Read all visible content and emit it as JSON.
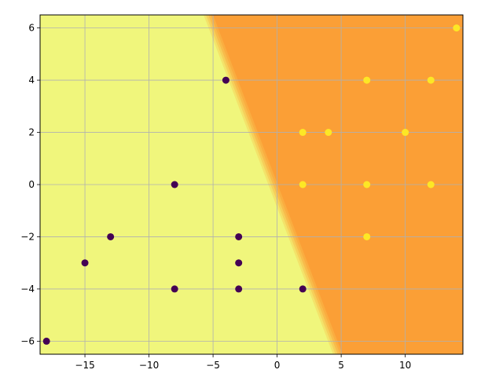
{
  "chart_data": {
    "type": "scatter",
    "title": "",
    "xlabel": "",
    "ylabel": "",
    "xlim": [
      -18.5,
      14.5
    ],
    "ylim": [
      -6.5,
      6.5
    ],
    "grid": true,
    "x_ticks": [
      -15,
      -10,
      -5,
      0,
      5,
      10
    ],
    "y_ticks": [
      -6,
      -4,
      -2,
      0,
      2,
      4,
      6
    ],
    "decision_regions": {
      "boundary_line": [
        [
          -5,
          6.5
        ],
        [
          5.1,
          -6.5
        ]
      ],
      "left_color": "#f0f67c",
      "right_color": "#fb9f36",
      "transition_colors": [
        "#f3e36a",
        "#f6cf5a",
        "#f8bb4b",
        "#faad40"
      ]
    },
    "series": [
      {
        "color": "#440154",
        "points": [
          [
            -18,
            -6
          ],
          [
            -15,
            -3
          ],
          [
            -13,
            -2
          ],
          [
            -8,
            0
          ],
          [
            -8,
            -4
          ],
          [
            -4,
            4
          ],
          [
            -3,
            -2
          ],
          [
            -3,
            -3
          ],
          [
            -3,
            -4
          ],
          [
            2,
            -4
          ]
        ]
      },
      {
        "color": "#fde725",
        "points": [
          [
            2,
            2
          ],
          [
            2,
            0
          ],
          [
            4,
            2
          ],
          [
            7,
            4
          ],
          [
            7,
            0
          ],
          [
            7,
            -2
          ],
          [
            10,
            2
          ],
          [
            12,
            4
          ],
          [
            12,
            0
          ],
          [
            14,
            6
          ]
        ]
      }
    ]
  }
}
